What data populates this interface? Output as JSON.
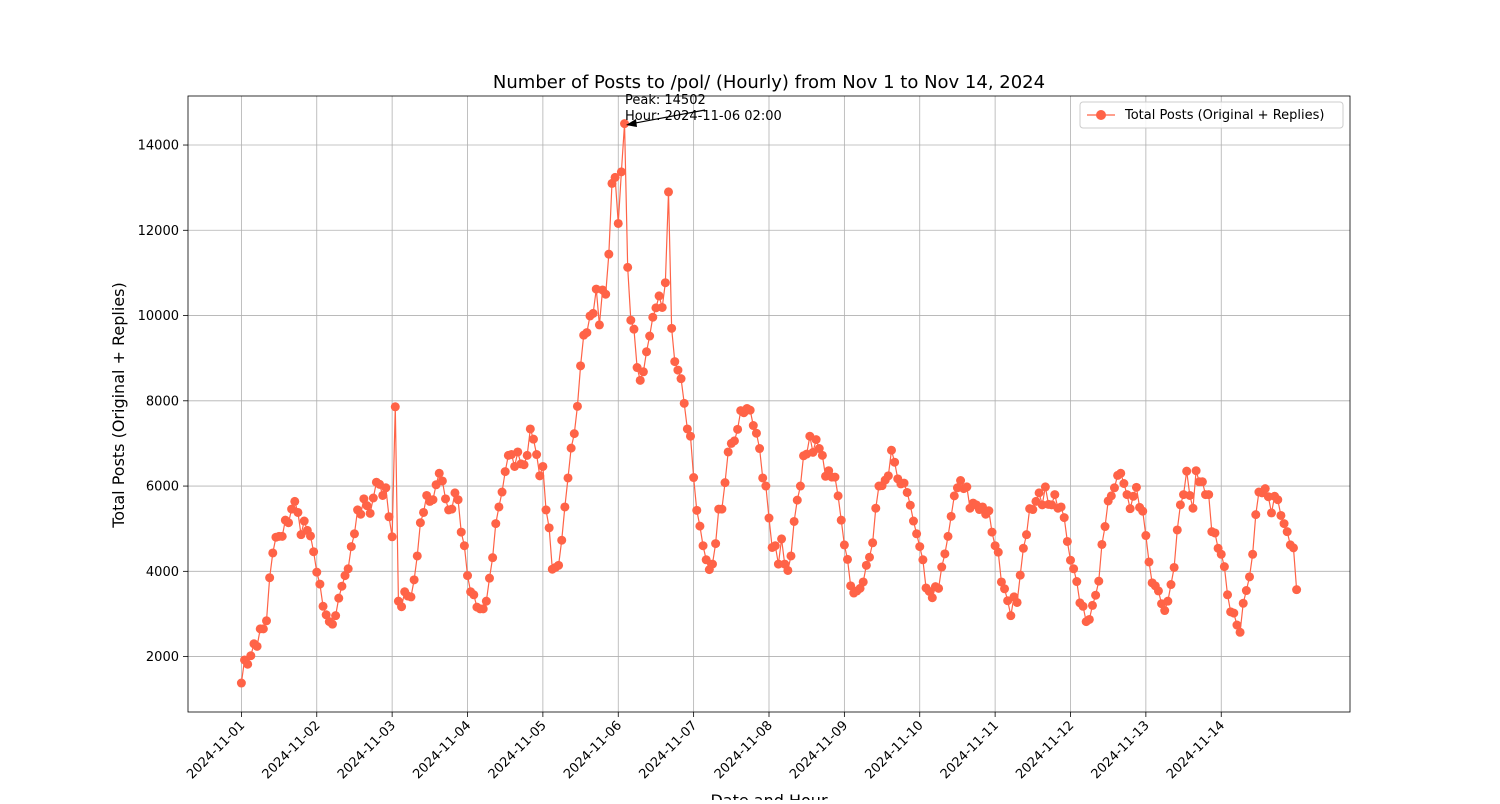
{
  "chart_data": {
    "type": "line",
    "title": "Number of Posts to /pol/ (Hourly) from Nov 1 to Nov 14, 2024",
    "xlabel": "Date and Hour",
    "ylabel": "Total Posts (Original + Replies)",
    "x_start": "2024-11-01 00:00",
    "x_interval": "1 hour",
    "xlim": [
      "2024-10-31 07:00",
      "2024-11-15 17:00"
    ],
    "ylim": [
      700,
      15150
    ],
    "x_ticks": [
      "2024-11-01",
      "2024-11-02",
      "2024-11-03",
      "2024-11-04",
      "2024-11-05",
      "2024-11-06",
      "2024-11-07",
      "2024-11-08",
      "2024-11-09",
      "2024-11-10",
      "2024-11-11",
      "2024-11-12",
      "2024-11-13",
      "2024-11-14"
    ],
    "y_ticks": [
      2000,
      4000,
      6000,
      8000,
      10000,
      12000,
      14000
    ],
    "grid": true,
    "legend": "top-right",
    "series": [
      {
        "name": "Total Posts (Original + Replies)",
        "color": "#ff6347",
        "values": [
          1380,
          1920,
          1820,
          2020,
          2300,
          2240,
          2650,
          2650,
          2840,
          3850,
          4430,
          4800,
          4820,
          4820,
          5200,
          5140,
          5460,
          5640,
          5380,
          4860,
          5180,
          4960,
          4830,
          4460,
          3980,
          3700,
          3180,
          2980,
          2820,
          2760,
          2960,
          3370,
          3650,
          3900,
          4060,
          4580,
          4880,
          5440,
          5340,
          5700,
          5540,
          5360,
          5720,
          6090,
          6040,
          5780,
          5960,
          5280,
          4810,
          7860,
          3300,
          3170,
          3520,
          3420,
          3400,
          3800,
          4360,
          5140,
          5380,
          5780,
          5640,
          5680,
          6030,
          6300,
          6120,
          5700,
          5440,
          5460,
          5840,
          5680,
          4920,
          4600,
          3900,
          3520,
          3450,
          3160,
          3120,
          3120,
          3300,
          3840,
          4320,
          5120,
          5510,
          5860,
          6340,
          6720,
          6740,
          6460,
          6800,
          6520,
          6500,
          6720,
          7340,
          7100,
          6740,
          6240,
          6460,
          5440,
          5020,
          4050,
          4090,
          4140,
          4730,
          5510,
          6190,
          6890,
          7230,
          7870,
          8820,
          9540,
          9600,
          9990,
          10050,
          10620,
          9780,
          10600,
          10500,
          11440,
          13100,
          13240,
          12160,
          13370,
          14502,
          11130,
          9890,
          9680,
          8780,
          8480,
          8680,
          9150,
          9520,
          9960,
          10180,
          10460,
          10190,
          10770,
          12900,
          9700,
          8920,
          8720,
          8520,
          7940,
          7340,
          7170,
          6200,
          5430,
          5060,
          4600,
          4270,
          4040,
          4170,
          4650,
          5460,
          5460,
          6080,
          6800,
          7000,
          7060,
          7330,
          7770,
          7720,
          7820,
          7780,
          7420,
          7240,
          6880,
          6190,
          6000,
          5250,
          4560,
          4600,
          4170,
          4760,
          4170,
          4020,
          4360,
          5170,
          5670,
          6000,
          6710,
          6750,
          7170,
          6790,
          7090,
          6880,
          6720,
          6230,
          6360,
          6210,
          6210,
          5770,
          5200,
          4620,
          4280,
          3660,
          3490,
          3540,
          3600,
          3750,
          4140,
          4330,
          4670,
          5480,
          6000,
          6010,
          6140,
          6240,
          6840,
          6560,
          6170,
          6050,
          6070,
          5850,
          5550,
          5180,
          4880,
          4580,
          4270,
          3610,
          3530,
          3380,
          3640,
          3600,
          4100,
          4410,
          4820,
          5290,
          5770,
          5960,
          6130,
          5940,
          5980,
          5480,
          5600,
          5560,
          5450,
          5510,
          5340,
          5420,
          4920,
          4600,
          4450,
          3750,
          3590,
          3310,
          2960,
          3400,
          3270,
          3910,
          4540,
          4860,
          5470,
          5450,
          5640,
          5840,
          5560,
          5980,
          5570,
          5560,
          5800,
          5480,
          5510,
          5260,
          4700,
          4260,
          4060,
          3760,
          3260,
          3180,
          2820,
          2870,
          3200,
          3440,
          3770,
          4630,
          5050,
          5650,
          5770,
          5960,
          6250,
          6300,
          6060,
          5800,
          5470,
          5760,
          5970,
          5500,
          5410,
          4840,
          4220,
          3730,
          3660,
          3540,
          3240,
          3080,
          3300,
          3690,
          4090,
          4970,
          5560,
          5800,
          6350,
          5780,
          5480,
          6360,
          6100,
          6100,
          5800,
          5800,
          4930,
          4900,
          4540,
          4400,
          4110,
          3450,
          3050,
          3020,
          2740,
          2570,
          3250,
          3550,
          3870,
          4400,
          5330,
          5860,
          5840,
          5940,
          5750,
          5370,
          5760,
          5680,
          5310,
          5120,
          4930,
          4620,
          4550,
          3570
        ]
      }
    ],
    "annotation": {
      "line1": "Peak: 14502",
      "line2": "Hour: 2024-11-06 02:00",
      "peak_value": 14502,
      "peak_time": "2024-11-06 02:00"
    }
  }
}
